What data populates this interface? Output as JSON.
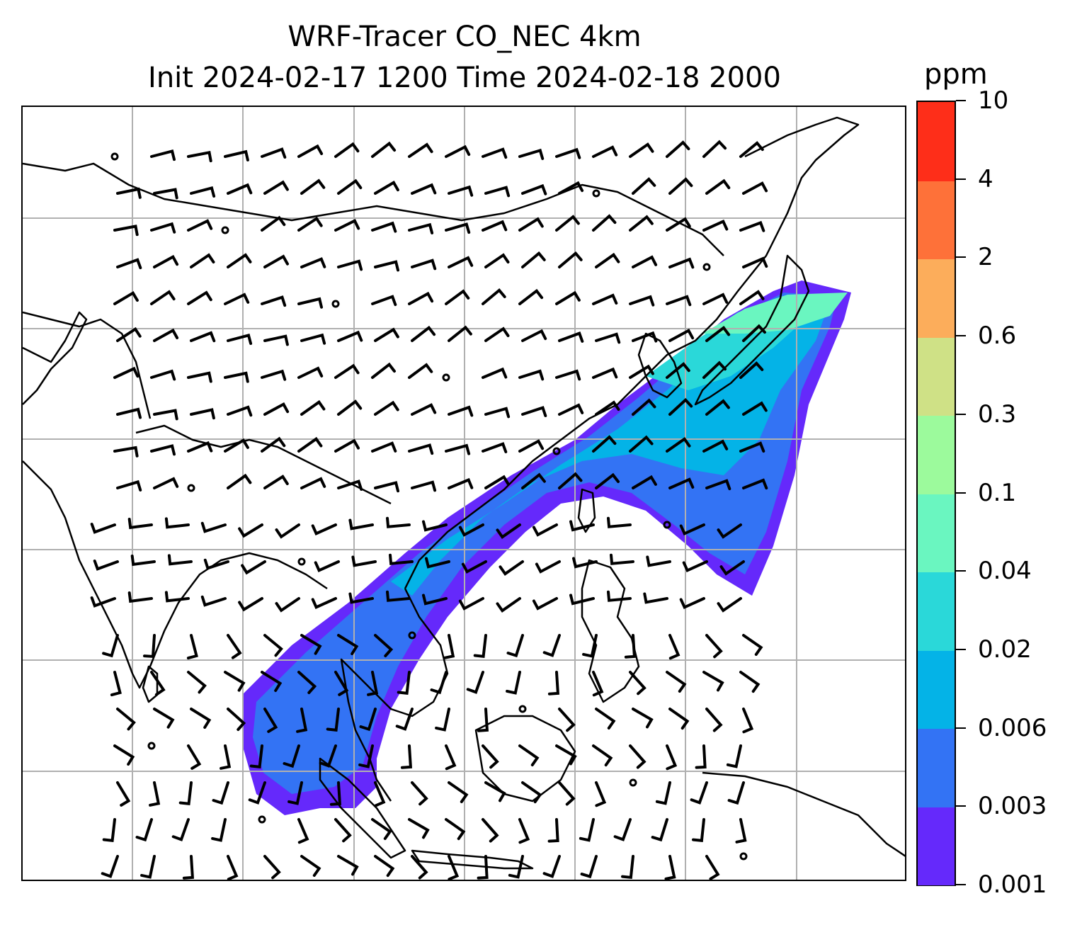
{
  "title_line1": "WRF-Tracer CO_NEC 4km",
  "title_line2": "Init 2024-02-17 1200 Time 2024-02-18 2000",
  "colorbar": {
    "unit": "ppm",
    "levels": [
      "0.001",
      "0.003",
      "0.006",
      "0.02",
      "0.04",
      "0.1",
      "0.3",
      "0.6",
      "2",
      "4",
      "10"
    ],
    "colors": [
      "#6529fb",
      "#3373f4",
      "#04b3e7",
      "#2ad8d9",
      "#6af6c0",
      "#9cfa9c",
      "#cfe186",
      "#fcad5b",
      "#fe7139",
      "#fe2e19"
    ]
  },
  "map": {
    "projection": "map",
    "gridlines": true,
    "coastlines": true,
    "field": "CO tracer concentration (ppm)",
    "overlay": "wind barbs",
    "plume_direction": "southwest to northeast"
  }
}
